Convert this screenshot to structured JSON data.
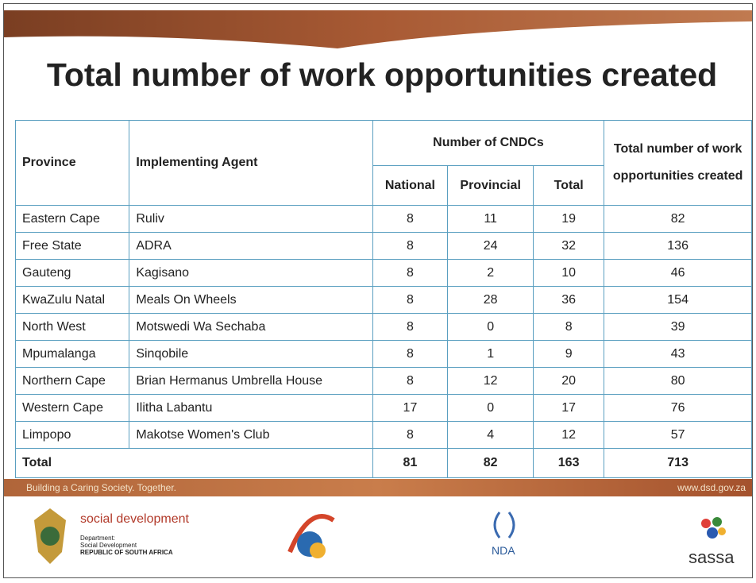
{
  "header": {
    "title": "Total number of work opportunities created"
  },
  "table": {
    "headers": {
      "province": "Province",
      "agent": "Implementing Agent",
      "group": "Number of CNDCs",
      "national": "National",
      "provincial": "Provincial",
      "total": "Total",
      "work": "Total number of work opportunities created"
    },
    "rows": [
      [
        "Eastern Cape",
        "Ruliv",
        8,
        11,
        19,
        82
      ],
      [
        "Free State",
        "ADRA",
        8,
        24,
        32,
        136
      ],
      [
        "Gauteng",
        "Kagisano",
        8,
        2,
        10,
        46
      ],
      [
        "KwaZulu Natal",
        "Meals On Wheels",
        8,
        28,
        36,
        154
      ],
      [
        "North West",
        "Motswedi Wa Sechaba",
        8,
        0,
        8,
        39
      ],
      [
        "Mpumalanga",
        "Sinqobile",
        8,
        1,
        9,
        43
      ],
      [
        "Northern Cape",
        "Brian Hermanus Umbrella House",
        8,
        12,
        20,
        80
      ],
      [
        "Western Cape",
        "Ilitha Labantu",
        17,
        0,
        17,
        76
      ],
      [
        "Limpopo",
        "Makotse Women's Club",
        8,
        4,
        12,
        57
      ]
    ],
    "total": {
      "label": "Total",
      "values": [
        81,
        82,
        163,
        713
      ]
    }
  },
  "footer": {
    "slogan": "Building a Caring Society. Together.",
    "url": "www.dsd.gov.za",
    "dept": "social development",
    "dept_line1": "Department:",
    "dept_line2": "Social Development",
    "dept_line3": "REPUBLIC OF SOUTH AFRICA",
    "nda": "NDA",
    "sassa": "sassa"
  }
}
